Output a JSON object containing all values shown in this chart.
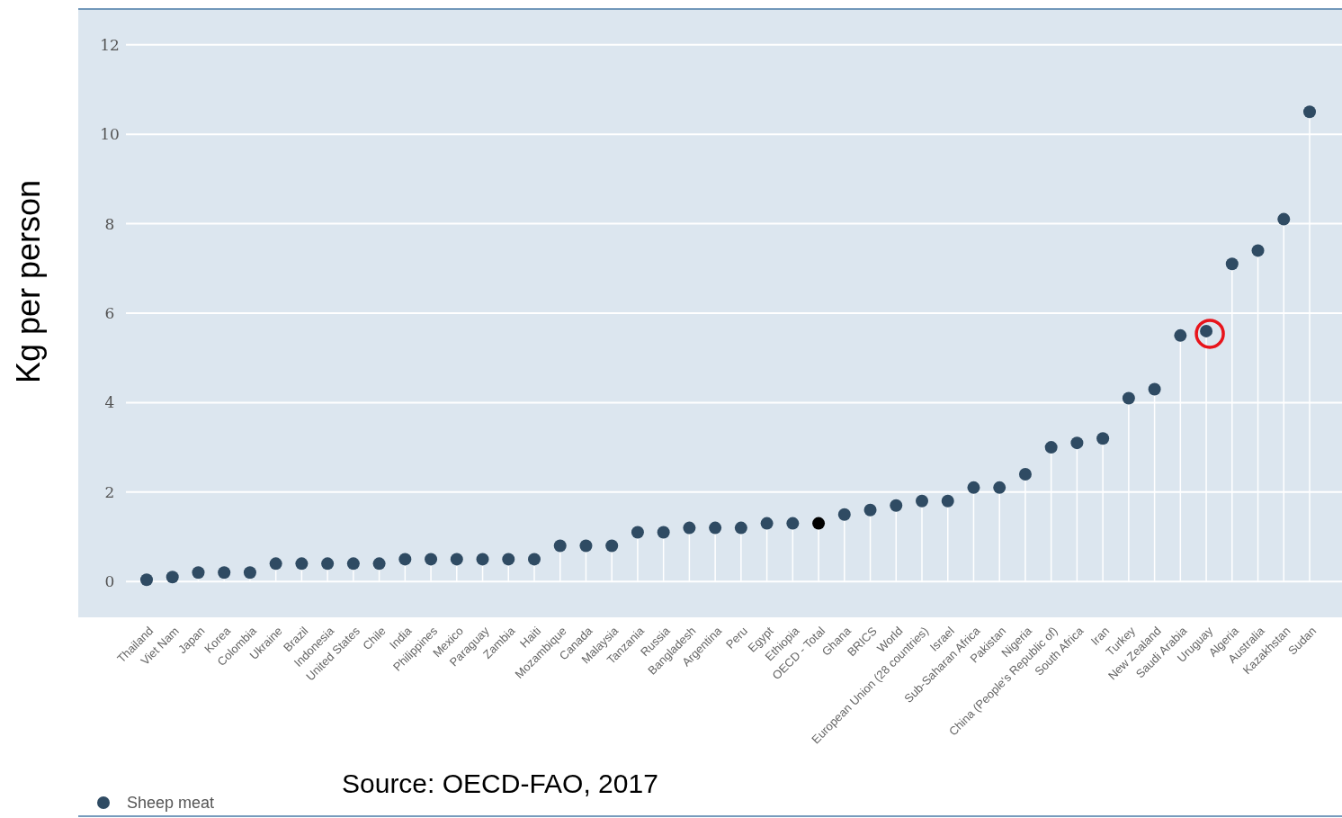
{
  "chart_data": {
    "type": "lollipop",
    "ylabel": "Kg per person",
    "annotations": [
      "Source: OECD-FAO, 2017"
    ],
    "categories": [
      "Thailand",
      "Viet Nam",
      "Japan",
      "Korea",
      "Colombia",
      "Ukraine",
      "Brazil",
      "Indonesia",
      "United States",
      "Chile",
      "India",
      "Philippines",
      "Mexico",
      "Paraguay",
      "Zambia",
      "Haiti",
      "Mozambique",
      "Canada",
      "Malaysia",
      "Tanzania",
      "Russia",
      "Bangladesh",
      "Argentina",
      "Peru",
      "Egypt",
      "Ethiopia",
      "OECD - Total",
      "Ghana",
      "BRICS",
      "World",
      "European Union (28 countries)",
      "Israel",
      "Sub-Saharan Africa",
      "Pakistan",
      "Nigeria",
      "China (People's Republic of)",
      "South Africa",
      "Iran",
      "Turkey",
      "New Zealand",
      "Saudi Arabia",
      "Uruguay",
      "Algeria",
      "Australia",
      "Kazakhstan",
      "Sudan"
    ],
    "series": [
      {
        "name": "Sheep meat",
        "color": "#2f4b63",
        "colors": [
          "#2f4b63",
          "#2f4b63",
          "#2f4b63",
          "#2f4b63",
          "#2f4b63",
          "#2f4b63",
          "#2f4b63",
          "#2f4b63",
          "#2f4b63",
          "#2f4b63",
          "#2f4b63",
          "#2f4b63",
          "#2f4b63",
          "#2f4b63",
          "#2f4b63",
          "#2f4b63",
          "#2f4b63",
          "#2f4b63",
          "#2f4b63",
          "#2f4b63",
          "#2f4b63",
          "#2f4b63",
          "#2f4b63",
          "#2f4b63",
          "#2f4b63",
          "#2f4b63",
          "#000000",
          "#2f4b63",
          "#2f4b63",
          "#2f4b63",
          "#2f4b63",
          "#2f4b63",
          "#2f4b63",
          "#2f4b63",
          "#2f4b63",
          "#2f4b63",
          "#2f4b63",
          "#2f4b63",
          "#2f4b63",
          "#2f4b63",
          "#2f4b63",
          "#2f4b63",
          "#2f4b63",
          "#2f4b63",
          "#2f4b63",
          "#2f4b63"
        ],
        "values": [
          0.04,
          0.1,
          0.2,
          0.2,
          0.2,
          0.4,
          0.4,
          0.4,
          0.4,
          0.4,
          0.5,
          0.5,
          0.5,
          0.5,
          0.5,
          0.5,
          0.8,
          0.8,
          0.8,
          1.1,
          1.1,
          1.2,
          1.2,
          1.2,
          1.3,
          1.3,
          1.3,
          1.5,
          1.6,
          1.7,
          1.8,
          1.8,
          2.1,
          2.1,
          2.4,
          3.0,
          3.1,
          3.2,
          4.1,
          4.3,
          5.5,
          5.6,
          7.1,
          7.4,
          8.1,
          10.5
        ]
      }
    ],
    "ylim": [
      -0.8,
      12.8
    ],
    "yticks": [
      0,
      2,
      4,
      6,
      8,
      10,
      12
    ],
    "grid": "y",
    "legend": "bottom left",
    "marker": "circle"
  }
}
